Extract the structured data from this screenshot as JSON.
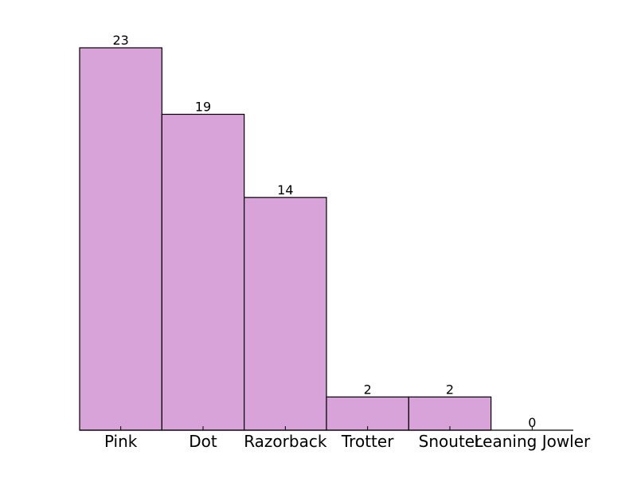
{
  "chart_data": {
    "type": "bar",
    "categories": [
      "Pink",
      "Dot",
      "Razorback",
      "Trotter",
      "Snouter",
      "Leaning Jowler"
    ],
    "values": [
      23,
      19,
      14,
      2,
      2,
      0
    ],
    "data_labels": [
      "23",
      "19",
      "14",
      "2",
      "2",
      "0"
    ],
    "title": "",
    "xlabel": "",
    "ylabel": "",
    "ylim": [
      0,
      23
    ],
    "grid": false,
    "legend": "none",
    "colors": {
      "bar_fill": "#d8a3d8",
      "bar_stroke": "#000000",
      "axis": "#000000",
      "text": "#000000"
    }
  }
}
